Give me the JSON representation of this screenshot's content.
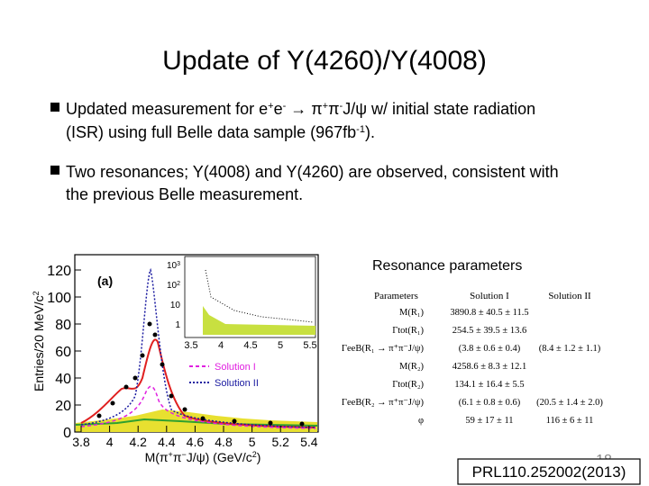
{
  "slide": {
    "title": "Update of Y(4260)/Y(4008)",
    "bullets": [
      {
        "lines": [
          [
            {
              "text": "Updated measurement for e"
            },
            {
              "text": "+",
              "sup": true
            },
            {
              "text": "e"
            },
            {
              "text": "-",
              "sup": true
            },
            {
              "text": " → π"
            },
            {
              "text": "+",
              "sup": true
            },
            {
              "text": "π"
            },
            {
              "text": "-",
              "sup": true
            },
            {
              "text": "J/ψ w/ initial state radiation"
            }
          ],
          [
            {
              "text": "(ISR) using full Belle data sample (967fb"
            },
            {
              "text": "-1",
              "sup": true
            },
            {
              "text": ")."
            }
          ]
        ]
      },
      {
        "lines": [
          [
            {
              "text": "Two resonances; Y(4008) and Y(4260) are observed, consistent with"
            }
          ],
          [
            {
              "text": "the previous Belle measurement."
            }
          ]
        ]
      }
    ],
    "figure": {
      "panel_label": "(a)",
      "y_label": [
        {
          "text": "Entries/20 MeV/c"
        },
        {
          "text": "2",
          "sup": true
        }
      ],
      "x_label": [
        {
          "text": "M(π"
        },
        {
          "text": "+",
          "sup": true
        },
        {
          "text": "π"
        },
        {
          "text": "−",
          "sup": true
        },
        {
          "text": "J/ψ) (GeV/c"
        },
        {
          "text": "2",
          "sup": true
        },
        {
          "text": ")"
        }
      ],
      "y_ticks": [
        "0",
        "20",
        "40",
        "60",
        "80",
        "100",
        "120"
      ],
      "x_ticks": [
        "3.8",
        "4",
        "4.2",
        "4.4",
        "4.6",
        "4.8",
        "5",
        "5.2",
        "5.4"
      ],
      "inset_y_ticks": [
        [
          {
            "text": "10"
          },
          {
            "text": "3",
            "sup": true
          }
        ],
        [
          {
            "text": "10"
          },
          {
            "text": "2",
            "sup": true
          }
        ],
        [
          {
            "text": "10"
          }
        ],
        [
          {
            "text": "1"
          }
        ]
      ],
      "inset_x_ticks": [
        "3.5",
        "4",
        "4.5",
        "5",
        "5.5"
      ],
      "legend": [
        "Solution I",
        "Solution II"
      ]
    },
    "table_title": "Resonance parameters",
    "table": {
      "header": [
        "Parameters",
        "Solution I",
        "Solution II"
      ],
      "rows": [
        [
          "M(R₁)",
          "3890.8 ± 40.5 ± 11.5",
          ""
        ],
        [
          "Γtot(R₁)",
          "254.5 ± 39.5 ± 13.6",
          ""
        ],
        [
          "ΓeeB(R₁ → π⁺π⁻J/ψ)",
          "(3.8 ± 0.6 ± 0.4)",
          "(8.4 ± 1.2 ± 1.1)"
        ],
        [
          "M(R₂)",
          "4258.6 ± 8.3 ± 12.1",
          ""
        ],
        [
          "Γtot(R₂)",
          "134.1 ± 16.4 ± 5.5",
          ""
        ],
        [
          "ΓeeB(R₂ → π⁺π⁻J/ψ)",
          "(6.1 ± 0.8 ± 0.6)",
          "(20.5 ± 1.4 ± 2.0)"
        ],
        [
          "φ",
          "59 ± 17 ± 11",
          "116 ± 6 ± 11"
        ]
      ]
    },
    "page_number": "18",
    "reference": "PRL110.252002(2013)"
  }
}
